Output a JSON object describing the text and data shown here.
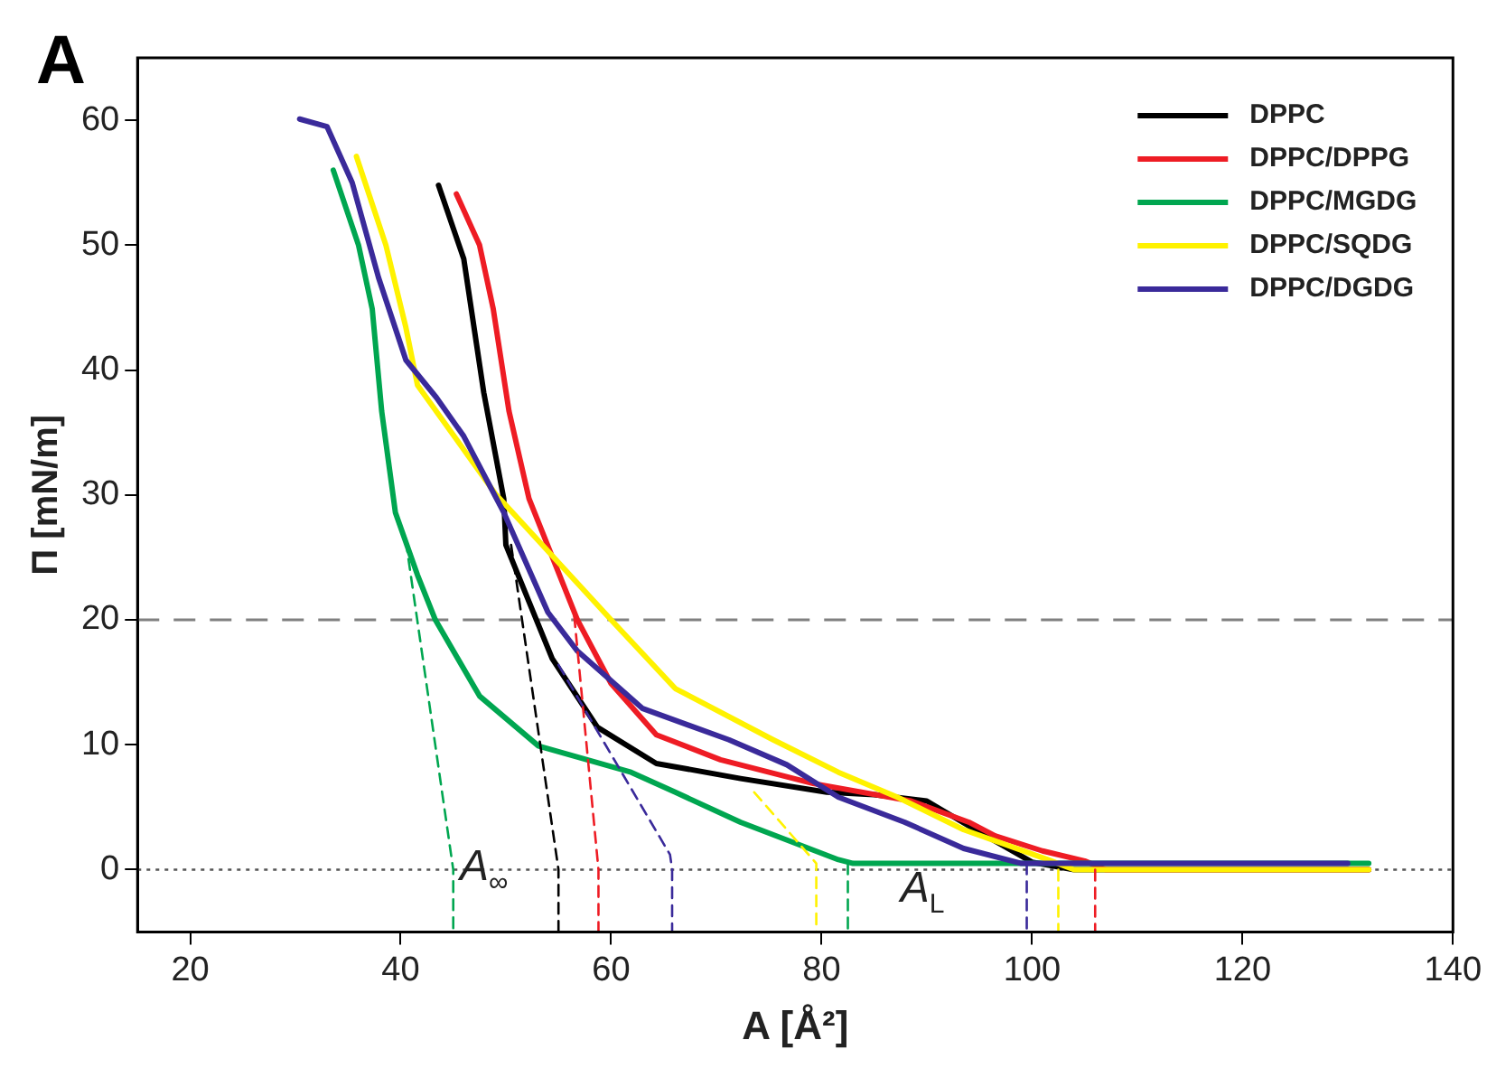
{
  "chart_data": {
    "type": "line",
    "title": "A",
    "xlabel": "A [Å²]",
    "ylabel": "Π [mN/m]",
    "xlim": [
      15,
      140
    ],
    "xticks": [
      20,
      40,
      60,
      80,
      100,
      120,
      140
    ],
    "ylim": [
      -5,
      65
    ],
    "yticks": [
      0,
      10,
      20,
      30,
      40,
      50,
      60
    ],
    "grid": false,
    "legend": "top right",
    "marker": "none",
    "line_style": "solid",
    "series": [
      {
        "name": "DPPC",
        "color": "#000000",
        "x": [
          43.6,
          46,
          47.9,
          49.8,
          50,
          54.4,
          58.7,
          64.3,
          72.3,
          80.5,
          85,
          90,
          95,
          100,
          104,
          132
        ],
        "values": [
          54.8,
          48.9,
          38.2,
          29.7,
          26,
          16.9,
          11.4,
          8.5,
          7.3,
          6.2,
          6,
          5.5,
          3,
          0.6,
          0,
          0
        ]
      },
      {
        "name": "DPPC/DPPG",
        "color": "#ee1c24",
        "x": [
          45.3,
          47.5,
          48.8,
          50.3,
          52.2,
          56.8,
          60,
          64.3,
          70.4,
          79.2,
          88.5,
          94,
          96.5,
          101,
          105,
          107,
          132
        ],
        "values": [
          54.1,
          50,
          44.9,
          36.7,
          29.7,
          20,
          14.9,
          10.8,
          8.8,
          6.9,
          5.5,
          3.8,
          2.7,
          1.5,
          0.7,
          0,
          0
        ]
      },
      {
        "name": "DPPC/MGDG",
        "color": "#00a650",
        "x": [
          33.6,
          36,
          37.3,
          38.2,
          39.5,
          41.6,
          43.3,
          47.5,
          53.1,
          61.9,
          66.1,
          72.3,
          81.6,
          83,
          132
        ],
        "values": [
          56,
          50,
          44.9,
          36.7,
          28.6,
          23.6,
          20,
          13.9,
          9.9,
          7.8,
          6.2,
          3.8,
          0.8,
          0.5,
          0.5
        ]
      },
      {
        "name": "DPPC/SQDG",
        "color": "#fff200",
        "x": [
          35.8,
          38.6,
          40.5,
          41.6,
          49,
          60,
          66.1,
          75.4,
          81.6,
          87.2,
          93.5,
          101.5,
          104,
          132
        ],
        "values": [
          57.1,
          50,
          43.4,
          38.8,
          30.1,
          20,
          14.5,
          10.4,
          7.8,
          5.8,
          3.2,
          0.8,
          0,
          0
        ]
      },
      {
        "name": "DPPC/DGDG",
        "color": "#3a2a9a",
        "x": [
          30.4,
          33,
          35.4,
          37.9,
          40.5,
          43.4,
          46,
          49.8,
          54,
          56.8,
          63,
          71.2,
          76.7,
          81.6,
          87.9,
          93.5,
          99,
          130
        ],
        "values": [
          60.1,
          59.5,
          55,
          47.4,
          40.8,
          37.8,
          34.7,
          28.6,
          20.6,
          17.5,
          12.9,
          10.4,
          8.4,
          5.8,
          3.8,
          1.7,
          0.5,
          0.5
        ]
      },
      {
        "line_style": "dashed",
        "color": "#00a650",
        "x": [
          40.5,
          45,
          45
        ],
        "values": [
          26.3,
          0,
          -5
        ]
      },
      {
        "line_style": "dashed",
        "color": "#000000",
        "x": [
          50.5,
          55,
          55
        ],
        "values": [
          26,
          0,
          -5
        ]
      },
      {
        "line_style": "dashed",
        "color": "#ee1c24",
        "x": [
          56.5,
          58.8,
          58.8
        ],
        "values": [
          20.3,
          0,
          -5
        ]
      },
      {
        "line_style": "dashed",
        "color": "#3a2a9a",
        "x": [
          55,
          65.6,
          65.8,
          65.8
        ],
        "values": [
          16.4,
          1.2,
          0,
          -5
        ]
      },
      {
        "line_style": "dashed",
        "color": "#fff200",
        "x": [
          73.6,
          79.5,
          79.5
        ],
        "values": [
          6.2,
          0.5,
          -5
        ]
      },
      {
        "line_style": "dashed",
        "color": "#00a650",
        "x": [
          82.5,
          82.5
        ],
        "values": [
          0.5,
          -5
        ]
      },
      {
        "line_style": "dashed",
        "color": "#3a2a9a",
        "x": [
          99.5,
          99.5
        ],
        "values": [
          0.5,
          -5
        ]
      },
      {
        "line_style": "dashed",
        "color": "#fff200",
        "x": [
          102.5,
          102.5
        ],
        "values": [
          0,
          -5
        ]
      },
      {
        "line_style": "dashed",
        "color": "#ee1c24",
        "x": [
          106,
          106
        ],
        "values": [
          0,
          -5
        ]
      }
    ],
    "ref_lines": [
      {
        "axis": "y",
        "value": 20,
        "color": "#808080",
        "line_style": "dashed"
      },
      {
        "axis": "y",
        "value": 0,
        "color": "#555555",
        "line_style": "dotted"
      }
    ],
    "annotations": [
      "A$_{∞}$",
      "A$_{L}$"
    ]
  }
}
